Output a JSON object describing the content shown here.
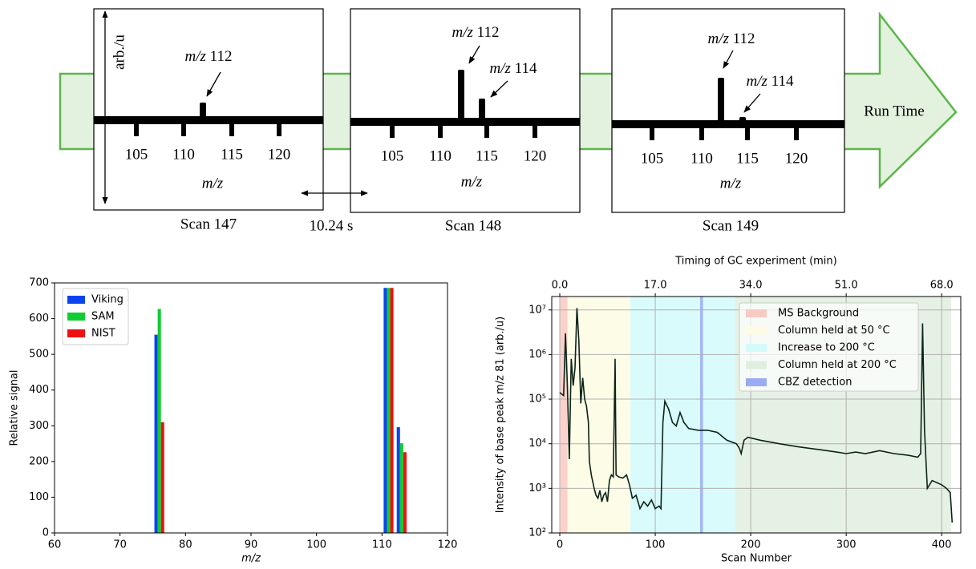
{
  "diagram": {
    "y_axis_label": "arb./u",
    "interval": "10.24 s",
    "run_time": "Run Time",
    "scans": [
      {
        "title": "Scan 147",
        "x_label": "m/z",
        "ticks": [
          "105",
          "110",
          "115",
          "120"
        ],
        "peaks": [
          {
            "ion": "m/z",
            "mass": "112"
          }
        ]
      },
      {
        "title": "Scan 148",
        "x_label": "m/z",
        "ticks": [
          "105",
          "110",
          "115",
          "120"
        ],
        "peaks": [
          {
            "ion": "m/z",
            "mass": "112"
          },
          {
            "ion": "m/z",
            "mass": "114"
          }
        ]
      },
      {
        "title": "Scan 149",
        "x_label": "m/z",
        "ticks": [
          "105",
          "110",
          "115",
          "120"
        ],
        "peaks": [
          {
            "ion": "m/z",
            "mass": "112"
          },
          {
            "ion": "m/z",
            "mass": "114"
          }
        ]
      }
    ]
  },
  "chart_data": [
    {
      "type": "bar",
      "xlabel": "m/z",
      "ylabel": "Relative signal",
      "x": [
        76,
        111,
        113
      ],
      "series": [
        {
          "name": "Viking",
          "color": "#0a44ee",
          "values": [
            555,
            686,
            296
          ]
        },
        {
          "name": "SAM",
          "color": "#11cc33",
          "values": [
            627,
            686,
            251
          ]
        },
        {
          "name": "NIST",
          "color": "#ee1111",
          "values": [
            310,
            686,
            226
          ]
        }
      ],
      "xlim": [
        60,
        120
      ],
      "xticks": [
        60,
        70,
        80,
        90,
        100,
        110,
        120
      ],
      "ylim": [
        0,
        700
      ],
      "yticks": [
        0,
        100,
        200,
        300,
        400,
        500,
        600,
        700
      ],
      "legend": "upper left"
    },
    {
      "type": "line",
      "xlabel": "Scan Number",
      "x2label": "Timing of GC experiment (min)",
      "ylabel": "Intensity of base peak m/z 81 (arb./u)",
      "color": "#0b2418",
      "log_y": true,
      "grid": true,
      "legend": "upper right",
      "x": [
        0,
        4,
        6,
        8,
        10,
        12,
        14,
        16,
        18,
        20,
        22,
        24,
        26,
        28,
        30,
        31,
        33,
        36,
        38,
        40,
        42,
        44,
        46,
        48,
        50,
        52,
        54,
        56,
        58,
        59,
        62,
        66,
        70,
        73,
        76,
        80,
        84,
        88,
        92,
        96,
        100,
        104,
        106,
        108,
        110,
        114,
        118,
        122,
        126,
        130,
        135,
        145,
        155,
        165,
        175,
        185,
        188,
        190,
        193,
        197,
        210,
        230,
        250,
        270,
        290,
        300,
        310,
        320,
        335,
        350,
        365,
        375,
        378,
        380,
        382,
        385,
        390,
        400,
        405,
        409,
        411
      ],
      "values": [
        140000,
        120000,
        3000000,
        200000,
        4500,
        800000,
        200000,
        500000,
        11000000,
        2000000,
        80000,
        300000,
        100000,
        70000,
        30000,
        4000,
        2000,
        1000,
        700,
        600,
        900,
        500,
        700,
        800,
        500,
        1500,
        2000,
        1800,
        800000,
        2000,
        1800,
        1700,
        2000,
        1200,
        600,
        700,
        350,
        500,
        400,
        550,
        350,
        400,
        350,
        30000,
        90000,
        60000,
        30000,
        25000,
        50000,
        30000,
        22000,
        20000,
        20000,
        18000,
        12000,
        10000,
        8000,
        6000,
        12000,
        14000,
        12000,
        10000,
        8500,
        7500,
        6500,
        6000,
        6500,
        6000,
        7000,
        6000,
        5500,
        5000,
        6000,
        5000000,
        20000,
        1000,
        1500,
        1200,
        1000,
        800,
        170
      ],
      "spans": [
        {
          "name": "MS Background",
          "color": "#f9c9c3",
          "start": 0,
          "end": 8
        },
        {
          "name": "Column held at 50 °C",
          "color": "#fdfbe3",
          "start": 8,
          "end": 74
        },
        {
          "name": "Increase to 200 °C",
          "color": "#d4fafa",
          "start": 74,
          "end": 184
        },
        {
          "name": "Column held at 200 °C",
          "color": "#e0eedf",
          "start": 184,
          "end": 410
        },
        {
          "name": "CBZ detection",
          "color": "#9aaaf4",
          "start": 147,
          "end": 150
        }
      ],
      "xlim": [
        -8.4,
        420
      ],
      "xticks": [
        0,
        100,
        200,
        300,
        400
      ],
      "x2lim": [
        -1.428,
        71.4
      ],
      "x2ticks": [
        {
          "value": 0,
          "label": "0.0"
        },
        {
          "value": 17,
          "label": "17.0"
        },
        {
          "value": 34,
          "label": "34.0"
        },
        {
          "value": 51,
          "label": "51.0"
        },
        {
          "value": 68,
          "label": "68.0"
        }
      ],
      "ylim": [
        100,
        20000000
      ],
      "yticks": [
        {
          "value": 100,
          "label": "10²"
        },
        {
          "value": 1000,
          "label": "10³"
        },
        {
          "value": 10000,
          "label": "10⁴"
        },
        {
          "value": 100000,
          "label": "10⁵"
        },
        {
          "value": 1000000,
          "label": "10⁶"
        },
        {
          "value": 10000000,
          "label": "10⁷"
        }
      ]
    }
  ]
}
